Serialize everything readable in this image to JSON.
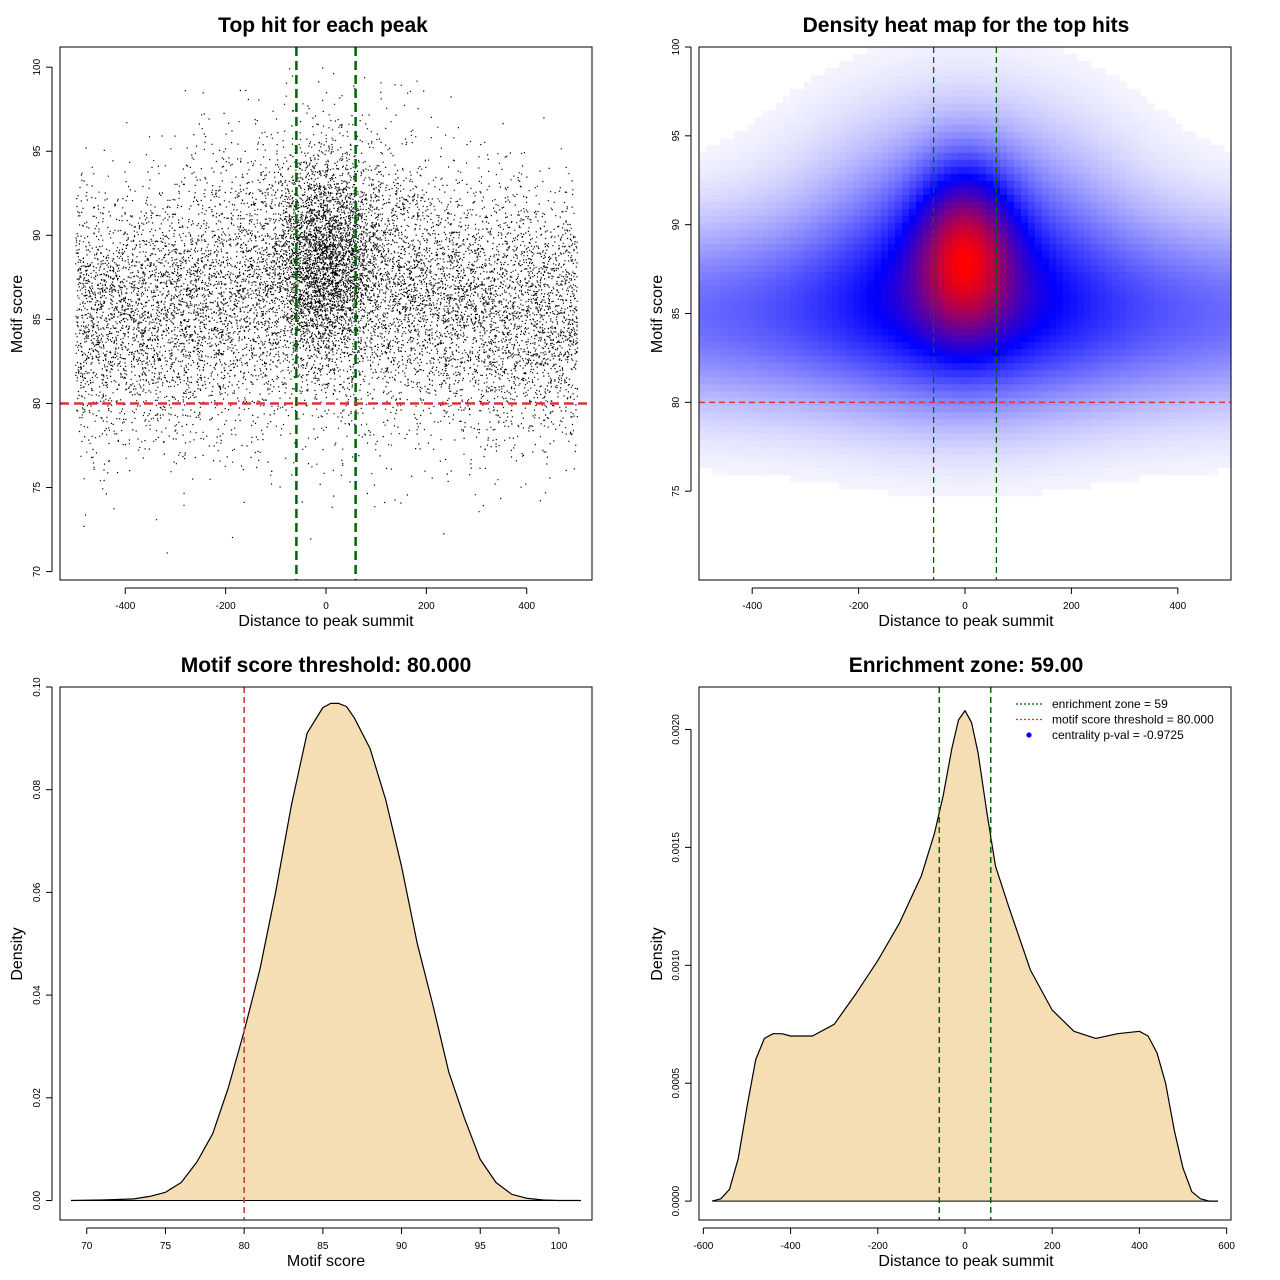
{
  "chart_data": [
    {
      "type": "scatter",
      "title": "Top hit for each peak",
      "xlabel": "Distance to peak summit",
      "ylabel": "Motif score",
      "xlim": [
        -530,
        530
      ],
      "ylim": [
        69.5,
        101.2
      ],
      "xticks": [
        -400,
        -200,
        0,
        200,
        400
      ],
      "yticks": [
        70,
        75,
        80,
        85,
        90,
        95,
        100
      ],
      "xtick_labels": [
        "-400",
        "-200",
        "0",
        "200",
        "400"
      ],
      "ytick_labels": [
        "70",
        "75",
        "80",
        "85",
        "90",
        "95",
        "100"
      ],
      "point_count_estimate": 20000,
      "x_range_points": [
        -500,
        500
      ],
      "background_center_y": 85,
      "central_center_y": 88.5,
      "central_enrichment_half_width": 59,
      "point_color": "#000000",
      "vlines": [
        {
          "x": -59,
          "color": "#006400",
          "style": "dashed"
        },
        {
          "x": 59,
          "color": "#006400",
          "style": "dashed"
        }
      ],
      "hlines": [
        {
          "y": 80,
          "color": "#dd3333",
          "style": "dashed"
        }
      ],
      "grid": false
    },
    {
      "type": "heatmap",
      "title": "Density heat map for the top hits",
      "xlabel": "Distance to peak summit",
      "ylabel": "Motif score",
      "xlim": [
        -500,
        500
      ],
      "ylim": [
        70,
        100
      ],
      "xticks": [
        -400,
        -200,
        0,
        200,
        400
      ],
      "yticks": [
        75,
        80,
        85,
        90,
        95,
        100
      ],
      "xtick_labels": [
        "-400",
        "-200",
        "0",
        "200",
        "400"
      ],
      "ytick_labels": [
        "75",
        "80",
        "85",
        "90",
        "95",
        "100"
      ],
      "colormap": [
        "#ffffff",
        "#0000ff",
        "#ff0000"
      ],
      "density_components": [
        {
          "x": 0,
          "y": 88.5,
          "sx": 60,
          "sy": 3.0,
          "w": 1.0
        },
        {
          "x": 0,
          "y": 88.0,
          "sx": 170,
          "sy": 4.5,
          "w": 0.55
        },
        {
          "x": 0,
          "y": 85.0,
          "sx": 700,
          "sy": 3.3,
          "w": 0.45
        }
      ],
      "vlines": [
        {
          "x": -59,
          "color": "#006400",
          "style": "dashed"
        },
        {
          "x": 59,
          "color": "#006400",
          "style": "dashed"
        }
      ],
      "hlines": [
        {
          "y": 80,
          "color": "#dd3333",
          "style": "dashed"
        }
      ],
      "grid": false
    },
    {
      "type": "area",
      "title": "Motif score threshold: 80.000",
      "xlabel": "Motif score",
      "ylabel": "Density",
      "xlim": [
        68.3,
        102.1
      ],
      "ylim": [
        -0.0038,
        0.1
      ],
      "xticks": [
        70,
        75,
        80,
        85,
        90,
        95,
        100
      ],
      "yticks": [
        0.0,
        0.02,
        0.04,
        0.06,
        0.08,
        0.1
      ],
      "xtick_labels": [
        "70",
        "75",
        "80",
        "85",
        "90",
        "95",
        "100"
      ],
      "ytick_labels": [
        "0.00",
        "0.02",
        "0.04",
        "0.06",
        "0.08",
        "0.10"
      ],
      "x": [
        69,
        71,
        73,
        74,
        75,
        76,
        77,
        78,
        79,
        80,
        81,
        82,
        83,
        84,
        85,
        85.5,
        86,
        86.5,
        87,
        88,
        89,
        90,
        91,
        92,
        93,
        94,
        95,
        96,
        97,
        98,
        99,
        100,
        101.4
      ],
      "y": [
        0.0,
        0.0001,
        0.0003,
        0.0008,
        0.0016,
        0.0035,
        0.0075,
        0.013,
        0.022,
        0.033,
        0.045,
        0.06,
        0.077,
        0.091,
        0.096,
        0.0968,
        0.0968,
        0.0962,
        0.094,
        0.088,
        0.078,
        0.065,
        0.05,
        0.038,
        0.025,
        0.016,
        0.008,
        0.0035,
        0.0012,
        0.0004,
        0.0001,
        0.0,
        0.0
      ],
      "fill_color": "#f5deb3",
      "vlines": [
        {
          "x": 80,
          "color": "#cc3333",
          "style": "dashed"
        }
      ],
      "grid": false
    },
    {
      "type": "area",
      "title": "Enrichment zone: 59.00",
      "xlabel": "Distance to peak summit",
      "ylabel": "Density",
      "xlim": [
        -610,
        610
      ],
      "ylim": [
        -8e-05,
        0.00218
      ],
      "xticks": [
        -600,
        -400,
        -200,
        0,
        200,
        400,
        600
      ],
      "yticks": [
        0.0,
        0.0005,
        0.001,
        0.0015,
        0.002
      ],
      "xtick_labels": [
        "-600",
        "-400",
        "-200",
        "0",
        "200",
        "400",
        "600"
      ],
      "ytick_labels": [
        "0.0000",
        "0.0005",
        "0.0010",
        "0.0015",
        "0.0020"
      ],
      "x": [
        -580,
        -560,
        -540,
        -520,
        -500,
        -480,
        -460,
        -440,
        -420,
        -400,
        -350,
        -300,
        -250,
        -200,
        -150,
        -100,
        -70,
        -50,
        -30,
        -15,
        0,
        15,
        30,
        50,
        70,
        100,
        150,
        200,
        250,
        300,
        350,
        400,
        420,
        440,
        460,
        480,
        500,
        520,
        540,
        560,
        580
      ],
      "y": [
        0.0,
        1e-05,
        5e-05,
        0.00018,
        0.0004,
        0.0006,
        0.00069,
        0.00071,
        0.00071,
        0.0007,
        0.0007,
        0.00075,
        0.00088,
        0.00102,
        0.00118,
        0.00138,
        0.00156,
        0.00172,
        0.00192,
        0.00204,
        0.00208,
        0.00203,
        0.0019,
        0.00165,
        0.00142,
        0.00125,
        0.00098,
        0.00081,
        0.00072,
        0.00069,
        0.00071,
        0.00072,
        0.0007,
        0.00063,
        0.0005,
        0.0003,
        0.00014,
        4e-05,
        1e-05,
        0.0,
        0.0
      ],
      "fill_color": "#f5deb3",
      "vlines": [
        {
          "x": -59,
          "color": "#006400",
          "style": "dashed"
        },
        {
          "x": 59,
          "color": "#006400",
          "style": "dashed"
        }
      ],
      "legend": {
        "position": "top-right",
        "entries": [
          {
            "label": "enrichment zone = 59",
            "color": "#006400",
            "kind": "dotted-line"
          },
          {
            "label": "motif score threshold = 80.000",
            "color": "#dd3333",
            "kind": "dotted-line"
          },
          {
            "label": "centrality p-val = -0.9725",
            "color": "#0000ff",
            "kind": "point"
          }
        ]
      },
      "grid": false
    }
  ]
}
